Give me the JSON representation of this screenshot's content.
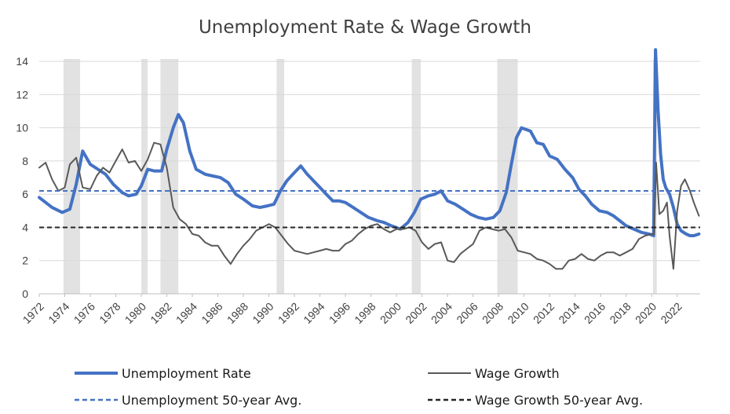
{
  "chart_data": {
    "type": "line",
    "title": "Unemployment Rate & Wage Growth",
    "xlabel": "",
    "ylabel": "",
    "xlim": [
      1972,
      2023.8
    ],
    "ylim": [
      0,
      15
    ],
    "y_ticks": [
      0,
      2,
      4,
      6,
      8,
      10,
      12,
      14
    ],
    "x_tick_labels": [
      "1972",
      "1974",
      "1976",
      "1978",
      "1980",
      "1982",
      "1984",
      "1986",
      "1988",
      "1990",
      "1992",
      "1994",
      "1996",
      "1998",
      "2000",
      "2002",
      "2004",
      "2006",
      "2008",
      "2010",
      "2012",
      "2014",
      "2016",
      "2018",
      "2020",
      "2022"
    ],
    "grid": true,
    "legend_position": "bottom",
    "recessions": [
      {
        "start": 1973.9,
        "end": 1975.2
      },
      {
        "start": 1980.0,
        "end": 1980.5
      },
      {
        "start": 1981.5,
        "end": 1982.9
      },
      {
        "start": 1990.6,
        "end": 1991.2
      },
      {
        "start": 2001.2,
        "end": 2001.9
      },
      {
        "start": 2007.9,
        "end": 2009.5
      },
      {
        "start": 2020.1,
        "end": 2020.4
      }
    ],
    "series": [
      {
        "name": "Unemployment Rate",
        "color": "#4472c4",
        "style": "solid",
        "x": [
          1972.0,
          1973.0,
          1973.8,
          1974.4,
          1974.9,
          1975.4,
          1976.0,
          1976.6,
          1977.2,
          1977.8,
          1978.5,
          1979.0,
          1979.6,
          1980.0,
          1980.5,
          1981.0,
          1981.6,
          1982.0,
          1982.5,
          1982.9,
          1983.3,
          1983.8,
          1984.3,
          1985.0,
          1985.6,
          1986.2,
          1986.8,
          1987.4,
          1988.0,
          1988.7,
          1989.3,
          1989.9,
          1990.4,
          1990.9,
          1991.4,
          1992.0,
          1992.5,
          1993.0,
          1993.5,
          1994.0,
          1994.5,
          1995.0,
          1995.5,
          1996.0,
          1996.6,
          1997.2,
          1997.8,
          1998.5,
          1999.0,
          1999.6,
          2000.3,
          2000.9,
          2001.4,
          2001.9,
          2002.5,
          2003.0,
          2003.5,
          2004.0,
          2004.6,
          2005.2,
          2005.8,
          2006.4,
          2007.0,
          2007.6,
          2008.1,
          2008.6,
          2009.0,
          2009.4,
          2009.8,
          2010.5,
          2011.0,
          2011.5,
          2012.0,
          2012.6,
          2013.2,
          2013.8,
          2014.3,
          2014.8,
          2015.3,
          2015.9,
          2016.5,
          2017.0,
          2017.5,
          2018.0,
          2018.6,
          2019.2,
          2019.8,
          2020.15,
          2020.3,
          2020.5,
          2020.7,
          2020.9,
          2021.1,
          2021.4,
          2021.7,
          2022.0,
          2022.3,
          2022.7,
          2023.0,
          2023.3,
          2023.7
        ],
        "y": [
          5.8,
          5.2,
          4.9,
          5.1,
          6.6,
          8.6,
          7.8,
          7.5,
          7.2,
          6.6,
          6.1,
          5.9,
          6.0,
          6.5,
          7.5,
          7.4,
          7.4,
          8.7,
          10.0,
          10.8,
          10.3,
          8.6,
          7.5,
          7.2,
          7.1,
          7.0,
          6.7,
          6.0,
          5.7,
          5.3,
          5.2,
          5.3,
          5.4,
          6.2,
          6.8,
          7.3,
          7.7,
          7.2,
          6.8,
          6.4,
          6.0,
          5.6,
          5.6,
          5.5,
          5.2,
          4.9,
          4.6,
          4.4,
          4.3,
          4.1,
          3.9,
          4.3,
          4.9,
          5.7,
          5.9,
          6.0,
          6.2,
          5.6,
          5.4,
          5.1,
          4.8,
          4.6,
          4.5,
          4.6,
          5.0,
          6.1,
          7.8,
          9.4,
          10.0,
          9.8,
          9.1,
          9.0,
          8.3,
          8.1,
          7.5,
          7.0,
          6.3,
          5.9,
          5.4,
          5.0,
          4.9,
          4.7,
          4.4,
          4.1,
          3.9,
          3.7,
          3.6,
          3.5,
          14.7,
          11.0,
          8.4,
          6.9,
          6.4,
          6.0,
          5.2,
          4.2,
          3.8,
          3.6,
          3.5,
          3.5,
          3.6
        ]
      },
      {
        "name": "Wage Growth",
        "color": "#595959",
        "style": "solid",
        "x": [
          1972.0,
          1972.5,
          1973.0,
          1973.5,
          1974.0,
          1974.4,
          1974.9,
          1975.4,
          1976.0,
          1976.5,
          1977.0,
          1977.5,
          1978.0,
          1978.5,
          1979.0,
          1979.5,
          1980.0,
          1980.5,
          1981.0,
          1981.5,
          1982.0,
          1982.5,
          1983.0,
          1983.5,
          1984.0,
          1984.5,
          1985.0,
          1985.5,
          1986.0,
          1986.5,
          1987.0,
          1987.5,
          1988.0,
          1988.5,
          1989.0,
          1989.5,
          1990.0,
          1990.5,
          1991.0,
          1991.5,
          1992.0,
          1992.5,
          1993.0,
          1993.5,
          1994.0,
          1994.5,
          1995.0,
          1995.5,
          1996.0,
          1996.5,
          1997.0,
          1997.5,
          1998.0,
          1998.5,
          1999.0,
          1999.5,
          2000.0,
          2000.5,
          2001.0,
          2001.5,
          2002.0,
          2002.5,
          2003.0,
          2003.5,
          2004.0,
          2004.5,
          2005.0,
          2005.5,
          2006.0,
          2006.5,
          2007.0,
          2007.5,
          2008.0,
          2008.5,
          2009.0,
          2009.5,
          2010.0,
          2010.5,
          2011.0,
          2011.5,
          2012.0,
          2012.5,
          2013.0,
          2013.5,
          2014.0,
          2014.5,
          2015.0,
          2015.5,
          2016.0,
          2016.5,
          2017.0,
          2017.5,
          2018.0,
          2018.5,
          2019.0,
          2019.5,
          2020.0,
          2020.2,
          2020.35,
          2020.6,
          2020.9,
          2021.2,
          2021.4,
          2021.7,
          2022.0,
          2022.3,
          2022.6,
          2023.0,
          2023.3,
          2023.7
        ],
        "y": [
          7.6,
          7.9,
          6.9,
          6.2,
          6.4,
          7.8,
          8.2,
          6.4,
          6.3,
          7.1,
          7.6,
          7.3,
          8.0,
          8.7,
          7.9,
          8.0,
          7.4,
          8.1,
          9.1,
          9.0,
          7.6,
          5.2,
          4.5,
          4.2,
          3.6,
          3.5,
          3.1,
          2.9,
          2.9,
          2.3,
          1.8,
          2.4,
          2.9,
          3.3,
          3.8,
          4.0,
          4.2,
          4.0,
          3.5,
          3.0,
          2.6,
          2.5,
          2.4,
          2.5,
          2.6,
          2.7,
          2.6,
          2.6,
          3.0,
          3.2,
          3.6,
          3.9,
          4.1,
          4.2,
          3.9,
          3.7,
          3.9,
          3.9,
          4.0,
          3.8,
          3.1,
          2.7,
          3.0,
          3.1,
          2.0,
          1.9,
          2.4,
          2.7,
          3.0,
          3.8,
          4.0,
          3.9,
          3.8,
          3.9,
          3.4,
          2.6,
          2.5,
          2.4,
          2.1,
          2.0,
          1.8,
          1.5,
          1.5,
          2.0,
          2.1,
          2.4,
          2.1,
          2.0,
          2.3,
          2.5,
          2.5,
          2.3,
          2.5,
          2.7,
          3.3,
          3.5,
          3.6,
          3.6,
          7.9,
          4.8,
          5.0,
          5.5,
          3.5,
          1.5,
          5.0,
          6.5,
          6.9,
          6.2,
          5.5,
          4.7
        ]
      },
      {
        "name": "Unemployment 50-year Avg.",
        "color": "#4472c4",
        "style": "dashed",
        "x": [
          1972,
          2023.8
        ],
        "y": [
          6.2,
          6.2
        ]
      },
      {
        "name": "Wage Growth 50-year Avg.",
        "color": "#262626",
        "style": "dashed",
        "x": [
          1972,
          2023.8
        ],
        "y": [
          4.0,
          4.0
        ]
      }
    ]
  }
}
